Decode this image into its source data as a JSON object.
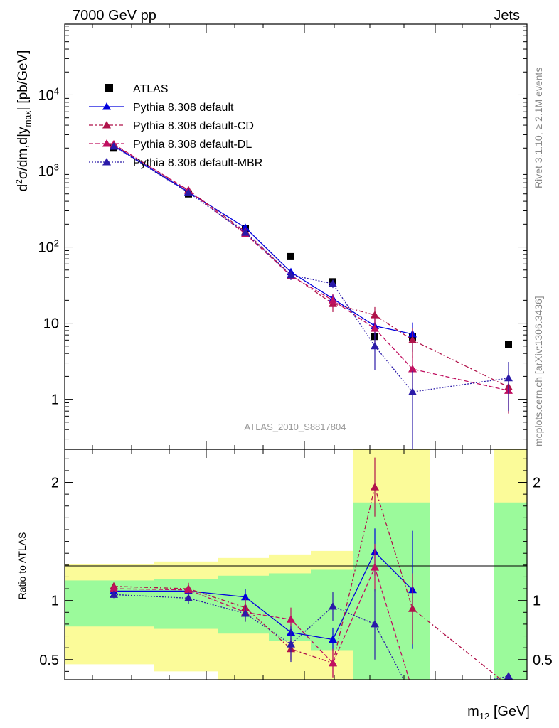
{
  "header": {
    "left": "7000 GeV pp",
    "right": "Jets"
  },
  "side_text": {
    "rivet": "Rivet 3.1.10, ≥ 2.1M events",
    "mcplots": "mcplots.cern.ch [arXiv:1306.3436]"
  },
  "analysis_id": "ATLAS_2010_S8817804",
  "x_axis_label": "m12 [GeV]",
  "colors": {
    "data": "#000000",
    "default": "#0000dd",
    "cd": "#b0134a",
    "dl": "#c01060",
    "mbr": "#2a1aa8",
    "band_inner": "#9bfa9b",
    "band_outer": "#fbfb99"
  },
  "chart_data": [
    {
      "type": "line",
      "panel": "main",
      "ylabel": "d²σ/dm,d|y_max| [pb/GeV]",
      "yscale": "log",
      "ylim": [
        0.22,
        85000
      ],
      "y_ticks": [
        {
          "value": 1,
          "label": "1"
        },
        {
          "value": 10,
          "label": "10"
        },
        {
          "value": 100,
          "label": "10^2"
        },
        {
          "value": 1000,
          "label": "10^3"
        },
        {
          "value": 10000,
          "label": "10^4"
        }
      ],
      "x": [
        1,
        2,
        3,
        4,
        5,
        6,
        7,
        8
      ],
      "series": [
        {
          "name": "ATLAS",
          "style": "square",
          "key": "data",
          "values": [
            2000,
            500,
            175,
            75,
            35,
            6.7,
            6.6,
            5.2
          ]
        },
        {
          "name": "Pythia 8.308 default",
          "style": "solid",
          "key": "default",
          "values": [
            2150,
            530,
            180,
            47,
            21,
            9.2,
            7.2,
            null
          ],
          "err": [
            0,
            25,
            12,
            5,
            3,
            2.5,
            3,
            0
          ]
        },
        {
          "name": "Pythia 8.308 default-CD",
          "style": "dashdot",
          "key": "cd",
          "values": [
            2200,
            560,
            160,
            43,
            18,
            12.8,
            6,
            1.45
          ],
          "err": [
            0,
            30,
            12,
            5,
            4,
            3.5,
            2.5,
            0.8
          ]
        },
        {
          "name": "Pythia 8.308 default-DL",
          "style": "dashed",
          "key": "dl",
          "values": [
            2250,
            550,
            150,
            42,
            20,
            8.5,
            2.5,
            1.3
          ],
          "err": [
            0,
            30,
            12,
            5,
            4,
            3,
            1.2,
            0.6
          ]
        },
        {
          "name": "Pythia 8.308 default-MBR",
          "style": "dotted",
          "key": "mbr",
          "values": [
            2100,
            520,
            155,
            43,
            33,
            5,
            1.25,
            1.9
          ],
          "err": [
            0,
            25,
            12,
            6,
            4,
            2.6,
            1.1,
            1.2
          ]
        }
      ]
    },
    {
      "type": "line",
      "panel": "ratio",
      "ylabel": "Ratio to ATLAS",
      "ylim": [
        0.33,
        2.28
      ],
      "y_ticks": [
        {
          "value": 0.5,
          "label": "0.5"
        },
        {
          "value": 1,
          "label": "1"
        },
        {
          "value": 2,
          "label": "2"
        }
      ],
      "x": [
        1,
        2,
        3,
        4,
        5,
        6,
        7,
        8
      ],
      "uncertainty_bands": [
        {
          "inner": [
            0.78,
            1.17
          ],
          "outer": [
            0.46,
            1.31
          ]
        },
        {
          "inner": [
            0.76,
            1.18
          ],
          "outer": [
            0.4,
            1.33
          ]
        },
        {
          "inner": [
            0.72,
            1.21
          ],
          "outer": [
            0.33,
            1.36
          ]
        },
        {
          "inner": [
            0.66,
            1.23
          ],
          "outer": [
            0.33,
            1.39
          ]
        },
        {
          "inner": [
            0.58,
            1.26
          ],
          "outer": [
            0.33,
            1.42
          ]
        },
        {
          "inner": [
            0.33,
            1.83
          ],
          "outer": [
            0.33,
            2.28
          ]
        },
        {
          "inner": null,
          "outer": null
        },
        {
          "inner": [
            0.33,
            1.83
          ],
          "outer": [
            0.33,
            2.28
          ]
        }
      ],
      "series": [
        {
          "name": "Pythia 8.308 default",
          "key": "default",
          "style": "solid",
          "values": [
            1.08,
            1.08,
            1.03,
            0.73,
            0.67,
            1.41,
            1.09,
            null
          ],
          "err": [
            0.03,
            0.05,
            0.07,
            0.08,
            0.1,
            0.2,
            0.5,
            0
          ]
        },
        {
          "name": "Pythia 8.308 default-CD",
          "key": "cd",
          "style": "dashdot",
          "values": [
            1.12,
            1.1,
            0.94,
            0.59,
            0.47,
            1.96,
            0.93,
            0.28
          ],
          "err": [
            0.03,
            0.05,
            0.08,
            0.09,
            0.12,
            0.25,
            0.3,
            0
          ]
        },
        {
          "name": "Pythia 8.308 default-DL",
          "key": "dl",
          "style": "dashed",
          "values": [
            1.1,
            1.09,
            0.9,
            0.84,
            0.47,
            1.28,
            0.24,
            0.25
          ],
          "err": [
            0.03,
            0.05,
            0.08,
            0.1,
            0.12,
            0.2,
            0.1,
            0
          ]
        },
        {
          "name": "Pythia 8.308 default-MBR",
          "key": "mbr",
          "style": "dotted",
          "values": [
            1.05,
            1.02,
            0.89,
            0.63,
            0.95,
            0.8,
            0.19,
            0.36
          ],
          "err": [
            0.03,
            0.05,
            0.07,
            0.15,
            0.12,
            0.3,
            0.1,
            0
          ]
        }
      ]
    }
  ]
}
